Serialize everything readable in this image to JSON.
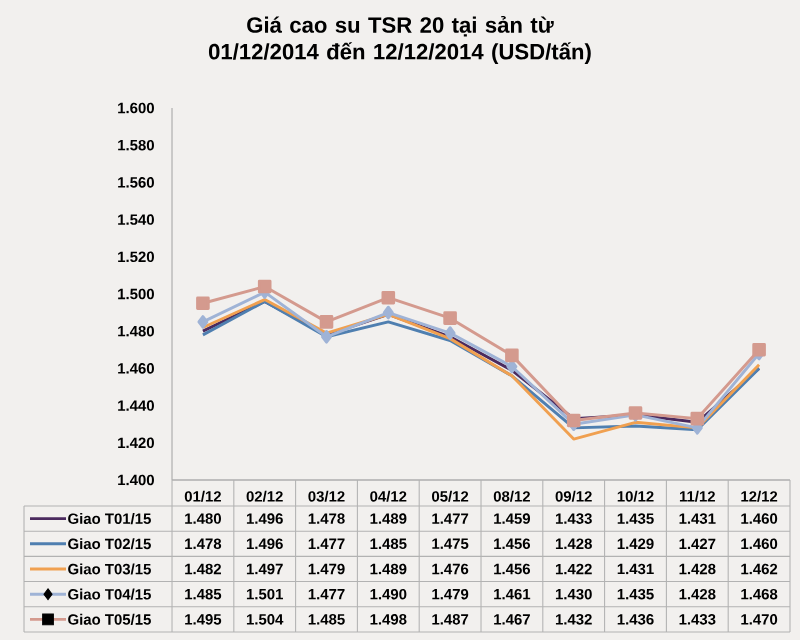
{
  "chart_data": {
    "type": "line",
    "title": "Giá cao su TSR 20 tại sản từ 01/12/2014 đến 12/12/2014 (USD/tấn)",
    "categories": [
      "01/12",
      "02/12",
      "03/12",
      "04/12",
      "05/12",
      "08/12",
      "09/12",
      "10/12",
      "11/12",
      "12/12"
    ],
    "ylim": [
      1400,
      1600
    ],
    "yticks": [
      {
        "value": 1400,
        "label": "1.400"
      },
      {
        "value": 1420,
        "label": "1.420"
      },
      {
        "value": 1440,
        "label": "1.440"
      },
      {
        "value": 1460,
        "label": "1.460"
      },
      {
        "value": 1480,
        "label": "1.480"
      },
      {
        "value": 1500,
        "label": "1.500"
      },
      {
        "value": 1520,
        "label": "1.520"
      },
      {
        "value": 1540,
        "label": "1.540"
      },
      {
        "value": 1560,
        "label": "1.560"
      },
      {
        "value": 1580,
        "label": "1.580"
      },
      {
        "value": 1600,
        "label": "1.600"
      }
    ],
    "grid": false,
    "legend": "bottom",
    "series": [
      {
        "name": "Giao T01/15",
        "color": "#4b2a5e",
        "marker": "none",
        "values": [
          1480,
          1496,
          1478,
          1489,
          1477,
          1459,
          1433,
          1435,
          1431,
          1460
        ],
        "value_labels": [
          "1.480",
          "1.496",
          "1.478",
          "1.489",
          "1.477",
          "1.459",
          "1.433",
          "1.435",
          "1.431",
          "1.460"
        ]
      },
      {
        "name": "Giao T02/15",
        "color": "#4f7fb0",
        "marker": "none",
        "values": [
          1478,
          1496,
          1477,
          1485,
          1475,
          1456,
          1428,
          1429,
          1427,
          1460
        ],
        "value_labels": [
          "1.478",
          "1.496",
          "1.477",
          "1.485",
          "1.475",
          "1.456",
          "1.428",
          "1.429",
          "1.427",
          "1.460"
        ]
      },
      {
        "name": "Giao T03/15",
        "color": "#f0a050",
        "marker": "none",
        "values": [
          1482,
          1497,
          1479,
          1489,
          1476,
          1456,
          1422,
          1431,
          1428,
          1462
        ],
        "value_labels": [
          "1.482",
          "1.497",
          "1.479",
          "1.489",
          "1.476",
          "1.456",
          "1.422",
          "1.431",
          "1.428",
          "1.462"
        ]
      },
      {
        "name": "Giao T04/15",
        "color": "#9fb3d6",
        "marker": "diamond",
        "values": [
          1485,
          1501,
          1477,
          1490,
          1479,
          1461,
          1430,
          1435,
          1428,
          1468
        ],
        "value_labels": [
          "1.485",
          "1.501",
          "1.477",
          "1.490",
          "1.479",
          "1.461",
          "1.430",
          "1.435",
          "1.428",
          "1.468"
        ]
      },
      {
        "name": "Giao T05/15",
        "color": "#d49a8e",
        "marker": "square",
        "values": [
          1495,
          1504,
          1485,
          1498,
          1487,
          1467,
          1432,
          1436,
          1433,
          1470
        ],
        "value_labels": [
          "1.495",
          "1.504",
          "1.485",
          "1.498",
          "1.487",
          "1.467",
          "1.432",
          "1.436",
          "1.433",
          "1.470"
        ]
      }
    ]
  }
}
